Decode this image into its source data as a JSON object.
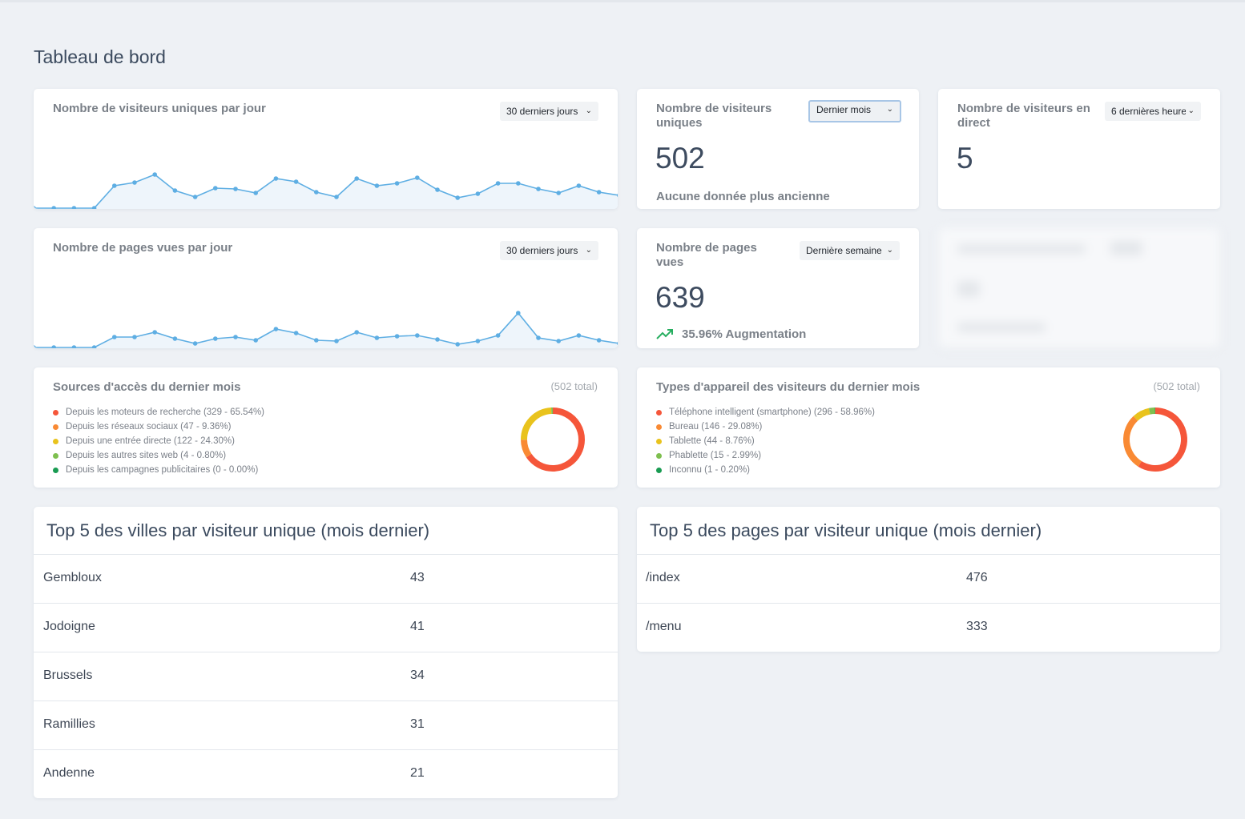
{
  "page": {
    "title": "Tableau de bord"
  },
  "cards": {
    "daily_visitors": {
      "title": "Nombre de visiteurs uniques par jour",
      "range": "30 derniers jours",
      "chart_data": {
        "type": "area",
        "title": "Nombre de visiteurs uniques par jour",
        "series": [
          {
            "name": "visiteurs",
            "values": [
              0,
              0,
              0,
              0,
              28,
              32,
              42,
              22,
              14,
              25,
              24,
              19,
              37,
              33,
              20,
              14,
              37,
              28,
              31,
              38,
              23,
              13,
              18,
              31,
              31,
              24,
              19,
              28,
              20,
              16
            ]
          }
        ],
        "ylim": [
          0,
          100
        ]
      }
    },
    "unique_visitors": {
      "title": "Nombre de visiteurs uniques",
      "range": "Dernier mois",
      "value": "502",
      "note": "Aucune donnée plus ancienne"
    },
    "live_visitors": {
      "title": "Nombre de visiteurs en direct",
      "range": "6 dernières heures",
      "value": "5"
    },
    "daily_pageviews": {
      "title": "Nombre de pages vues par jour",
      "range": "30 derniers jours",
      "chart_data": {
        "type": "area",
        "title": "Nombre de pages vues par jour",
        "series": [
          {
            "name": "pages vues",
            "values": [
              0,
              0,
              0,
              0,
              13,
              13,
              19,
              11,
              5,
              11,
              13,
              9,
              23,
              18,
              9,
              8,
              19,
              12,
              14,
              15,
              10,
              4,
              8,
              15,
              43,
              12,
              8,
              15,
              9,
              5
            ]
          }
        ],
        "ylim": [
          0,
          100
        ]
      }
    },
    "pageviews": {
      "title": "Nombre de pages vues",
      "range": "Dernière semaine",
      "value": "639",
      "trend": "35.96% Augmentation",
      "trend_color": "#27ae60"
    },
    "sources": {
      "title": "Sources d'accès du dernier mois",
      "total": "(502 total)",
      "chart_data": {
        "type": "pie",
        "values": [
          329,
          47,
          122,
          4,
          0
        ],
        "categories": [
          "Depuis les moteurs de recherche",
          "Depuis les réseaux sociaux",
          "Depuis une entrée directe",
          "Depuis les autres sites web",
          "Depuis les campagnes publicitaires"
        ],
        "colors": [
          "#f5563a",
          "#f98a34",
          "#e9c31d",
          "#7ebf4f",
          "#199b52"
        ]
      },
      "legend": [
        "Depuis les moteurs de recherche (329 - 65.54%)",
        "Depuis les réseaux sociaux (47 - 9.36%)",
        "Depuis une entrée directe (122 - 24.30%)",
        "Depuis les autres sites web (4 - 0.80%)",
        "Depuis les campagnes publicitaires (0 - 0.00%)"
      ]
    },
    "devices": {
      "title": "Types d'appareil des visiteurs du dernier mois",
      "total": "(502 total)",
      "chart_data": {
        "type": "pie",
        "values": [
          296,
          146,
          44,
          15,
          1
        ],
        "categories": [
          "Téléphone intelligent (smartphone)",
          "Bureau",
          "Tablette",
          "Phablette",
          "Inconnu"
        ],
        "colors": [
          "#f5563a",
          "#f98a34",
          "#e9c31d",
          "#7ebf4f",
          "#199b52"
        ]
      },
      "legend": [
        "Téléphone intelligent (smartphone) (296 - 58.96%)",
        "Bureau (146 - 29.08%)",
        "Tablette (44 - 8.76%)",
        "Phablette (15 - 2.99%)",
        "Inconnu (1 - 0.20%)"
      ]
    }
  },
  "tables": {
    "cities": {
      "title": "Top 5 des villes par visiteur unique (mois dernier)",
      "rows": [
        {
          "name": "Gembloux",
          "value": "43"
        },
        {
          "name": "Jodoigne",
          "value": "41"
        },
        {
          "name": "Brussels",
          "value": "34"
        },
        {
          "name": "Ramillies",
          "value": "31"
        },
        {
          "name": "Andenne",
          "value": "21"
        }
      ]
    },
    "pages": {
      "title": "Top 5 des pages par visiteur unique (mois dernier)",
      "rows": [
        {
          "name": "/index",
          "value": "476"
        },
        {
          "name": "/menu",
          "value": "333"
        }
      ]
    }
  },
  "colors": {
    "line": "#5eaee3",
    "fill": "#eef5fb",
    "accent_focus": "#a8c6e6"
  }
}
